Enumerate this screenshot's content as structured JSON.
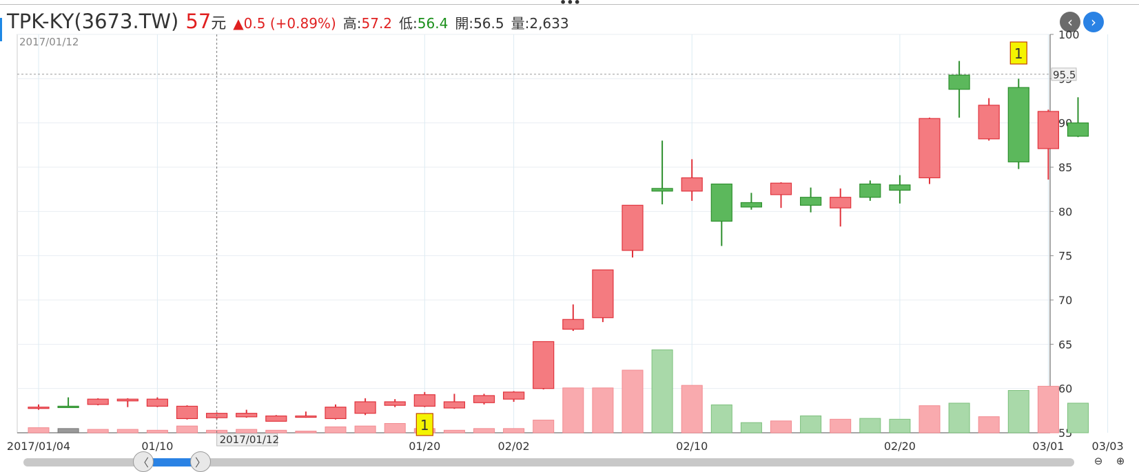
{
  "header": {
    "title": "TPK-KY(3673.TW)",
    "price": "57",
    "price_unit": "元",
    "change": "▲0.5 (+0.89%)",
    "high_label": "高:",
    "high": "57.2",
    "low_label": "低:",
    "low": "56.4",
    "open_label": "開:",
    "open": "56.5",
    "volume_label": "量:",
    "volume": "2,633"
  },
  "nav": {
    "prev_icon": "chevron-left-icon",
    "next_icon": "chevron-right-icon"
  },
  "zoom": {
    "out_icon": "zoom-out-icon",
    "in_icon": "zoom-in-icon",
    "out_glyph": "⊖",
    "in_glyph": "⊕"
  },
  "scrollbar": {
    "left_glyph": "〈",
    "right_glyph": "〉"
  },
  "colors": {
    "up": "#f47b80",
    "up_border": "#e0333c",
    "down": "#5cb85c",
    "down_border": "#2d8f2d",
    "vol_up": "#f9aaae",
    "vol_down": "#a9d9a9",
    "vol_flat": "#999999",
    "grid": "#e8edf2",
    "axis": "#888888"
  },
  "chart_data": {
    "type": "candlestick",
    "cursor_date_label": "2017/01/12",
    "top_left_date_label": "2017/01/12",
    "last_price_tag": "95.5",
    "y_axis": {
      "min": 55,
      "max": 100,
      "ticks": [
        55,
        60,
        65,
        70,
        75,
        80,
        85,
        90,
        95,
        100
      ]
    },
    "x_ticks": [
      {
        "index": 0,
        "label": "2017/01/04"
      },
      {
        "index": 4,
        "label": "01/10"
      },
      {
        "index": 13,
        "label": "01/20"
      },
      {
        "index": 16,
        "label": "02/02"
      },
      {
        "index": 22,
        "label": "02/10"
      },
      {
        "index": 29,
        "label": "02/20"
      },
      {
        "index": 34,
        "label": "03/01"
      },
      {
        "index": 36,
        "label": "03/03"
      }
    ],
    "markers": [
      {
        "index": 13,
        "label": "1",
        "position": "bottom"
      },
      {
        "index": 33,
        "label": "1",
        "position": "top"
      }
    ],
    "candles": [
      {
        "open": 57.8,
        "close": 57.9,
        "high": 58.2,
        "low": 57.6,
        "vol": 0.6
      },
      {
        "open": 58.0,
        "close": 58.0,
        "high": 59.0,
        "low": 57.9,
        "vol": 0.5
      },
      {
        "open": 58.2,
        "close": 58.8,
        "high": 58.9,
        "low": 58.1,
        "vol": 0.4
      },
      {
        "open": 58.6,
        "close": 58.8,
        "high": 58.9,
        "low": 57.9,
        "vol": 0.4
      },
      {
        "open": 58.0,
        "close": 58.8,
        "high": 59.0,
        "low": 57.9,
        "vol": 0.3
      },
      {
        "open": 56.6,
        "close": 58.0,
        "high": 58.1,
        "low": 56.5,
        "vol": 0.8
      },
      {
        "open": 56.7,
        "close": 57.2,
        "high": 57.3,
        "low": 56.5,
        "vol": 0.3
      },
      {
        "open": 56.8,
        "close": 57.2,
        "high": 57.6,
        "low": 56.7,
        "vol": 0.4
      },
      {
        "open": 56.3,
        "close": 56.9,
        "high": 57.0,
        "low": 56.3,
        "vol": 0.3
      },
      {
        "open": 56.8,
        "close": 56.9,
        "high": 57.4,
        "low": 56.7,
        "vol": 0.2
      },
      {
        "open": 56.6,
        "close": 57.9,
        "high": 58.2,
        "low": 56.5,
        "vol": 0.7
      },
      {
        "open": 57.2,
        "close": 58.5,
        "high": 58.9,
        "low": 57.0,
        "vol": 0.8
      },
      {
        "open": 58.1,
        "close": 58.5,
        "high": 58.8,
        "low": 57.9,
        "vol": 1.1
      },
      {
        "open": 58.0,
        "close": 59.3,
        "high": 59.6,
        "low": 57.9,
        "vol": 0.5
      },
      {
        "open": 57.8,
        "close": 58.5,
        "high": 59.4,
        "low": 57.7,
        "vol": 0.3
      },
      {
        "open": 58.4,
        "close": 59.2,
        "high": 59.4,
        "low": 58.2,
        "vol": 0.5
      },
      {
        "open": 58.8,
        "close": 59.6,
        "high": 59.7,
        "low": 58.5,
        "vol": 0.5
      },
      {
        "open": 60.0,
        "close": 65.3,
        "high": 65.3,
        "low": 59.9,
        "vol": 1.5
      },
      {
        "open": 66.7,
        "close": 67.8,
        "high": 69.5,
        "low": 66.5,
        "vol": 5.3
      },
      {
        "open": 68.0,
        "close": 73.4,
        "high": 73.4,
        "low": 67.5,
        "vol": 5.3
      },
      {
        "open": 75.6,
        "close": 80.7,
        "high": 80.7,
        "low": 74.8,
        "vol": 7.4
      },
      {
        "open": 82.6,
        "close": 82.3,
        "high": 88.0,
        "low": 80.8,
        "vol": 9.8
      },
      {
        "open": 82.3,
        "close": 83.8,
        "high": 85.9,
        "low": 81.2,
        "vol": 5.6
      },
      {
        "open": 83.1,
        "close": 78.9,
        "high": 83.1,
        "low": 76.1,
        "vol": 3.3
      },
      {
        "open": 81.0,
        "close": 80.5,
        "high": 82.1,
        "low": 80.2,
        "vol": 1.2
      },
      {
        "open": 81.9,
        "close": 83.2,
        "high": 83.3,
        "low": 80.4,
        "vol": 1.4
      },
      {
        "open": 81.6,
        "close": 80.7,
        "high": 82.7,
        "low": 79.9,
        "vol": 2.0
      },
      {
        "open": 80.4,
        "close": 81.6,
        "high": 82.6,
        "low": 78.3,
        "vol": 1.6
      },
      {
        "open": 83.1,
        "close": 81.6,
        "high": 83.5,
        "low": 81.2,
        "vol": 1.7
      },
      {
        "open": 83.0,
        "close": 82.4,
        "high": 84.1,
        "low": 80.9,
        "vol": 1.6
      },
      {
        "open": 83.8,
        "close": 90.5,
        "high": 90.6,
        "low": 83.1,
        "vol": 3.2
      },
      {
        "open": 95.4,
        "close": 93.8,
        "high": 97.0,
        "low": 90.6,
        "vol": 3.5
      },
      {
        "open": 88.2,
        "close": 92.0,
        "high": 92.8,
        "low": 88.0,
        "vol": 1.9
      },
      {
        "open": 94.0,
        "close": 85.6,
        "high": 95.0,
        "low": 84.8,
        "vol": 5.0
      },
      {
        "open": 87.1,
        "close": 91.3,
        "high": 91.5,
        "low": 83.6,
        "vol": 5.5
      },
      {
        "open": 90.0,
        "close": 88.5,
        "high": 92.9,
        "low": 88.4,
        "vol": 3.5
      }
    ]
  }
}
